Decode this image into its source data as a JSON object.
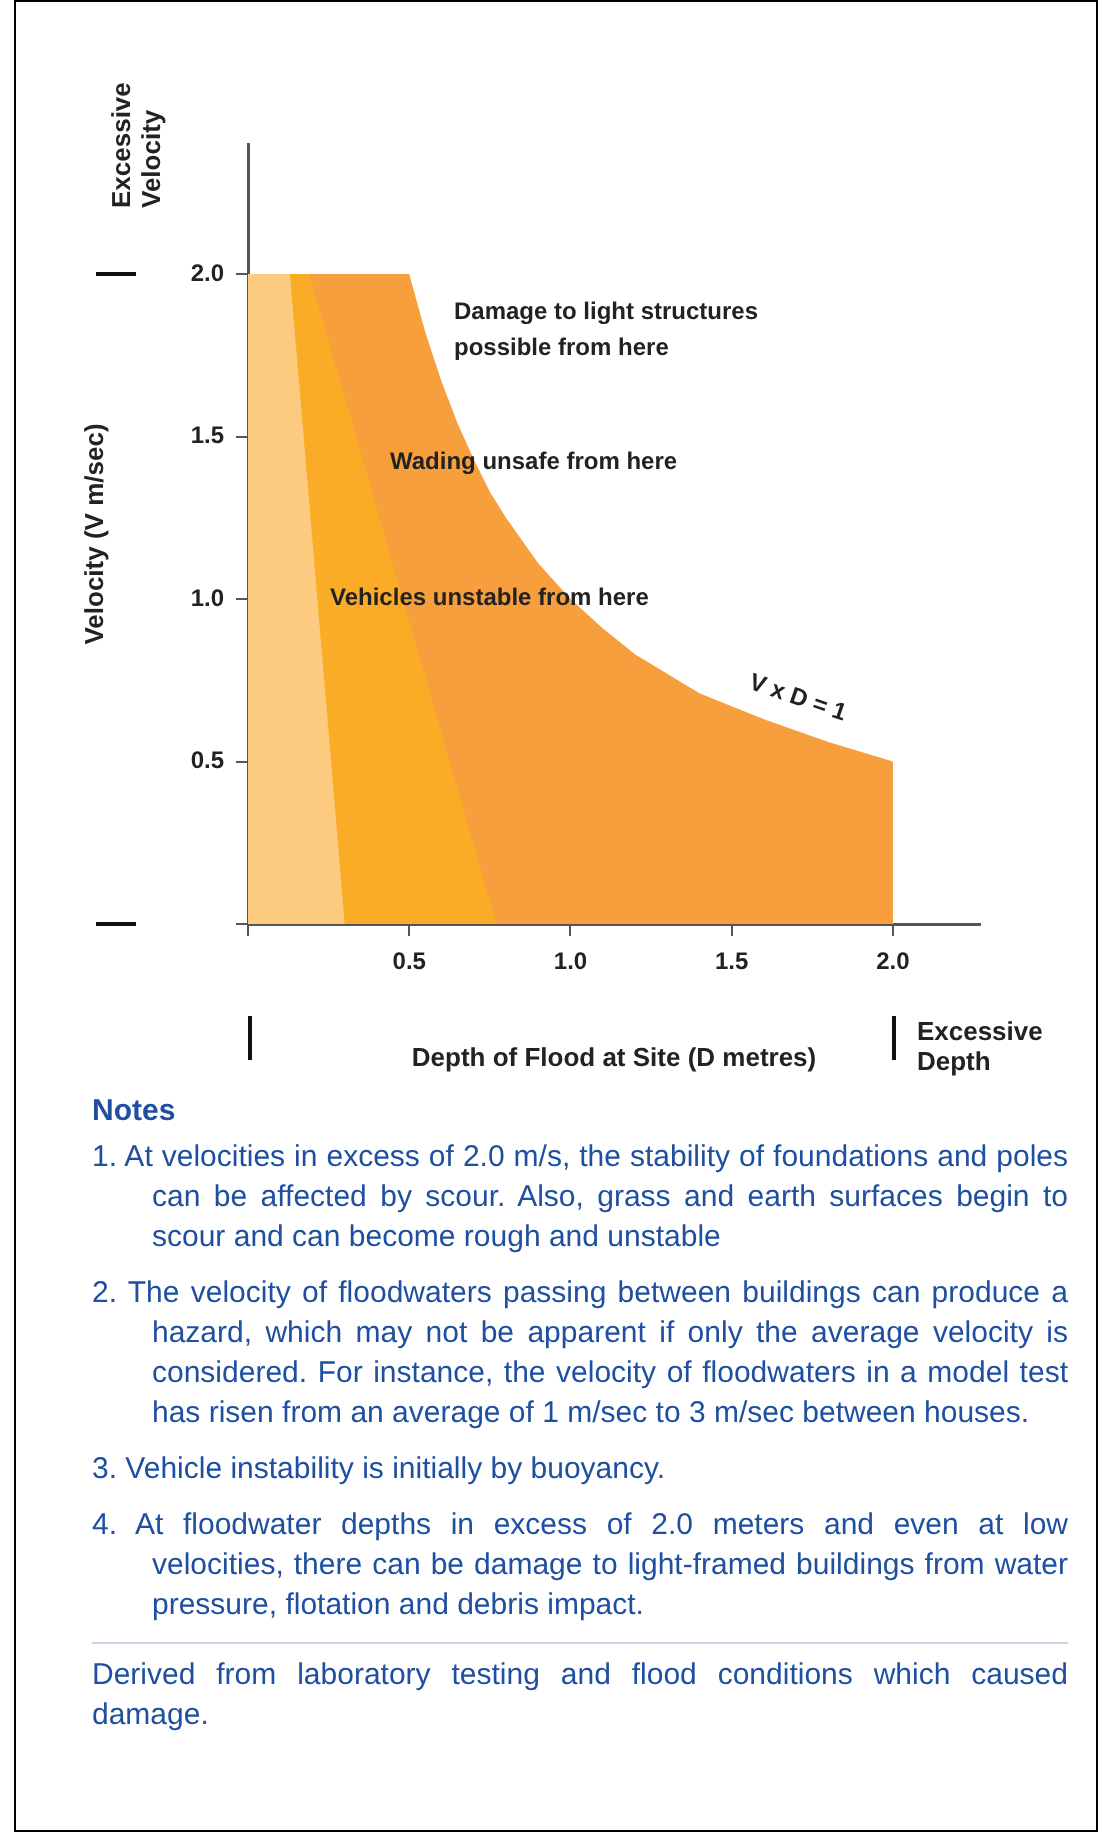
{
  "chart_data": {
    "type": "area",
    "xlabel": "Depth of Flood at Site (D metres)",
    "ylabel": "Velocity (V m/sec)",
    "xlim": [
      0,
      2.27
    ],
    "xticks": [
      {
        "value": 0,
        "label": null
      },
      {
        "value": 0.5,
        "label": "0.5"
      },
      {
        "value": 1,
        "label": "1.0"
      },
      {
        "value": 1.5,
        "label": "1.5"
      },
      {
        "value": 2,
        "label": "2.0"
      }
    ],
    "ylim": [
      0,
      2.4
    ],
    "yticks": [
      {
        "value": 0,
        "label": null
      },
      {
        "value": 0.5,
        "label": "0.5"
      },
      {
        "value": 1,
        "label": "1.0"
      },
      {
        "value": 1.5,
        "label": "1.5"
      },
      {
        "value": 2,
        "label": "2.0"
      }
    ],
    "grid": false,
    "legend": false,
    "series": [
      {
        "color": "#fdcb80",
        "x": [
          0,
          0.13,
          0.3
        ],
        "values": [
          2,
          2,
          0
        ]
      },
      {
        "color": "#fbac26",
        "x": [
          0,
          0.19,
          0.77
        ],
        "values": [
          2,
          2,
          0
        ]
      },
      {
        "color": "#f79f3c",
        "x": [
          0,
          0.5,
          0.55,
          0.6,
          0.65,
          0.7,
          0.75,
          0.8,
          0.9,
          1.0,
          1.1,
          1.2,
          1.3,
          1.4,
          1.5,
          1.6,
          1.8,
          2.0,
          2.0
        ],
        "values": [
          2,
          2,
          1.82,
          1.67,
          1.54,
          1.43,
          1.33,
          1.25,
          1.11,
          1,
          0.91,
          0.83,
          0.77,
          0.71,
          0.67,
          0.63,
          0.56,
          0.5,
          0
        ]
      }
    ],
    "annotations": [
      "Damage to light structures possible from here",
      "Wading unsafe from here",
      "Vehicles unstable from here",
      "V x D = 1",
      "Excessive Velocity",
      "Excessive Depth",
      "Notes",
      "1. At velocities in excess of 2.0 m/s, the stability of foundations and poles can be affected by scour. Also, grass and earth surfaces begin to scour and can become rough and unstable",
      "2. The velocity of floodwaters passing between buildings can produce a hazard, which may not be apparent if only the average velocity is considered. For instance, the velocity of floodwaters in a model test has risen from an average of 1 m/sec to 3 m/sec between houses.",
      "3. Vehicle instability is initially by buoyancy.",
      "4. At floodwater depths in excess of 2.0 meters and even at low velocities, there can be damage to light-framed buildings from water pressure, flotation and debris impact.",
      "Derived from laboratory testing and flood conditions which caused damage."
    ]
  }
}
